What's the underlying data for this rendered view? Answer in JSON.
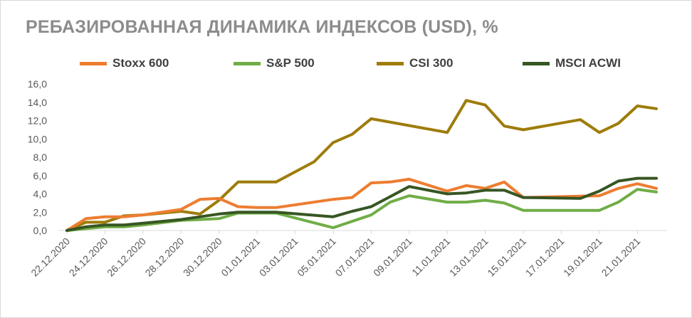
{
  "chart_data": {
    "type": "line",
    "title": "РЕБАЗИРОВАННАЯ ДИНАМИКА ИНДЕКСОВ (USD), %",
    "xlabel": "",
    "ylabel": "",
    "ylim": [
      0,
      16
    ],
    "yticks": [
      "0,0",
      "2,0",
      "4,0",
      "6,0",
      "8,0",
      "10,0",
      "12,0",
      "14,0",
      "16,0"
    ],
    "x": [
      "22.12.2020",
      "23.12.2020",
      "24.12.2020",
      "25.12.2020",
      "26.12.2020",
      "27.12.2020",
      "28.12.2020",
      "29.12.2020",
      "30.12.2020",
      "31.12.2020",
      "01.01.2021",
      "02.01.2021",
      "03.01.2021",
      "04.01.2021",
      "05.01.2021",
      "06.01.2021",
      "07.01.2021",
      "08.01.2021",
      "09.01.2021",
      "10.01.2021",
      "11.01.2021",
      "12.01.2021",
      "13.01.2021",
      "14.01.2021",
      "15.01.2021",
      "16.01.2021",
      "17.01.2021",
      "18.01.2021",
      "19.01.2021",
      "20.01.2021",
      "21.01.2021",
      "22.01.2021"
    ],
    "xticks": [
      "22.12.2020",
      "24.12.2020",
      "26.12.2020",
      "28.12.2020",
      "30.12.2020",
      "01.01.2021",
      "03.01.2021",
      "05.01.2021",
      "07.01.2021",
      "09.01.2021",
      "11.01.2021",
      "13.01.2021",
      "15.01.2021",
      "17.01.2021",
      "19.01.2021",
      "21.01.2021"
    ],
    "legend_position": "top",
    "grid": false,
    "series": [
      {
        "name": "Stoxx 600",
        "color": "#ed7d31",
        "points": [
          [
            "22.12.2020",
            0.0
          ],
          [
            "23.12.2020",
            1.3
          ],
          [
            "24.12.2020",
            1.5
          ],
          [
            "25.12.2020",
            1.5
          ],
          [
            "26.12.2020",
            1.7
          ],
          [
            "28.12.2020",
            2.3
          ],
          [
            "29.12.2020",
            3.4
          ],
          [
            "30.12.2020",
            3.5
          ],
          [
            "31.12.2020",
            2.6
          ],
          [
            "01.01.2021",
            2.5
          ],
          [
            "02.01.2021",
            2.5
          ],
          [
            "05.01.2021",
            3.4
          ],
          [
            "06.01.2021",
            3.6
          ],
          [
            "07.01.2021",
            5.2
          ],
          [
            "08.01.2021",
            5.3
          ],
          [
            "09.01.2021",
            5.6
          ],
          [
            "11.01.2021",
            4.3
          ],
          [
            "12.01.2021",
            4.9
          ],
          [
            "13.01.2021",
            4.6
          ],
          [
            "14.01.2021",
            5.3
          ],
          [
            "15.01.2021",
            3.6
          ],
          [
            "19.01.2021",
            3.8
          ],
          [
            "20.01.2021",
            4.6
          ],
          [
            "21.01.2021",
            5.1
          ],
          [
            "22.01.2021",
            4.6
          ]
        ]
      },
      {
        "name": "S&P 500",
        "color": "#70ad47",
        "points": [
          [
            "22.12.2020",
            0.0
          ],
          [
            "23.12.2020",
            0.2
          ],
          [
            "24.12.2020",
            0.4
          ],
          [
            "25.12.2020",
            0.4
          ],
          [
            "26.12.2020",
            0.6
          ],
          [
            "28.12.2020",
            1.1
          ],
          [
            "29.12.2020",
            1.2
          ],
          [
            "30.12.2020",
            1.3
          ],
          [
            "31.12.2020",
            1.9
          ],
          [
            "01.01.2021",
            1.9
          ],
          [
            "02.01.2021",
            1.9
          ],
          [
            "05.01.2021",
            0.3
          ],
          [
            "06.01.2021",
            1.0
          ],
          [
            "07.01.2021",
            1.7
          ],
          [
            "08.01.2021",
            3.1
          ],
          [
            "09.01.2021",
            3.8
          ],
          [
            "11.01.2021",
            3.1
          ],
          [
            "12.01.2021",
            3.1
          ],
          [
            "13.01.2021",
            3.3
          ],
          [
            "14.01.2021",
            3.0
          ],
          [
            "15.01.2021",
            2.2
          ],
          [
            "18.01.2021",
            2.2
          ],
          [
            "19.01.2021",
            2.2
          ],
          [
            "20.01.2021",
            3.1
          ],
          [
            "21.01.2021",
            4.5
          ],
          [
            "22.01.2021",
            4.2
          ]
        ]
      },
      {
        "name": "CSI 300",
        "color": "#9e7c0a",
        "points": [
          [
            "22.12.2020",
            0.0
          ],
          [
            "23.12.2020",
            0.9
          ],
          [
            "24.12.2020",
            0.9
          ],
          [
            "25.12.2020",
            1.6
          ],
          [
            "26.12.2020",
            1.7
          ],
          [
            "28.12.2020",
            2.1
          ],
          [
            "29.12.2020",
            1.8
          ],
          [
            "30.12.2020",
            3.3
          ],
          [
            "31.12.2020",
            5.3
          ],
          [
            "01.01.2021",
            5.3
          ],
          [
            "02.01.2021",
            5.3
          ],
          [
            "04.01.2021",
            7.5
          ],
          [
            "05.01.2021",
            9.6
          ],
          [
            "06.01.2021",
            10.5
          ],
          [
            "07.01.2021",
            12.2
          ],
          [
            "11.01.2021",
            10.7
          ],
          [
            "12.01.2021",
            14.2
          ],
          [
            "13.01.2021",
            13.7
          ],
          [
            "14.01.2021",
            11.4
          ],
          [
            "15.01.2021",
            11.0
          ],
          [
            "18.01.2021",
            12.1
          ],
          [
            "19.01.2021",
            10.7
          ],
          [
            "20.01.2021",
            11.7
          ],
          [
            "21.01.2021",
            13.6
          ],
          [
            "22.01.2021",
            13.3
          ]
        ]
      },
      {
        "name": "MSCI ACWI",
        "color": "#375623",
        "points": [
          [
            "22.12.2020",
            0.0
          ],
          [
            "23.12.2020",
            0.4
          ],
          [
            "24.12.2020",
            0.6
          ],
          [
            "25.12.2020",
            0.6
          ],
          [
            "26.12.2020",
            0.8
          ],
          [
            "28.12.2020",
            1.2
          ],
          [
            "29.12.2020",
            1.5
          ],
          [
            "30.12.2020",
            1.8
          ],
          [
            "31.12.2020",
            2.0
          ],
          [
            "01.01.2021",
            2.0
          ],
          [
            "02.01.2021",
            2.0
          ],
          [
            "05.01.2021",
            1.5
          ],
          [
            "06.01.2021",
            2.1
          ],
          [
            "07.01.2021",
            2.6
          ],
          [
            "08.01.2021",
            3.7
          ],
          [
            "09.01.2021",
            4.8
          ],
          [
            "11.01.2021",
            4.0
          ],
          [
            "12.01.2021",
            4.1
          ],
          [
            "13.01.2021",
            4.4
          ],
          [
            "14.01.2021",
            4.4
          ],
          [
            "15.01.2021",
            3.6
          ],
          [
            "18.01.2021",
            3.5
          ],
          [
            "19.01.2021",
            4.3
          ],
          [
            "20.01.2021",
            5.4
          ],
          [
            "21.01.2021",
            5.7
          ],
          [
            "22.01.2021",
            5.7
          ]
        ]
      }
    ]
  }
}
